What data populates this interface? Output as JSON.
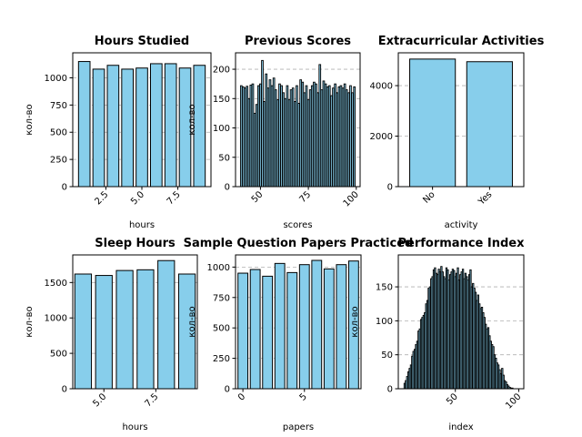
{
  "chart_data": [
    {
      "type": "bar",
      "title": "Hours Studied",
      "xlabel": "hours",
      "ylabel": "кол-во",
      "xlim": [
        0.2,
        9.8
      ],
      "ylim": [
        0,
        1230
      ],
      "yticks": [
        0,
        250,
        500,
        750,
        1000
      ],
      "xticks": [
        2.5,
        5.0,
        7.5
      ],
      "xtick_labels": [
        "2.5",
        "5.0",
        "7.5"
      ],
      "x": [
        1,
        2,
        3,
        4,
        5,
        6,
        7,
        8,
        9
      ],
      "values": [
        1150,
        1080,
        1115,
        1080,
        1090,
        1130,
        1130,
        1090,
        1115
      ],
      "bar_width": 0.8,
      "color": "#87ceeb",
      "grid": "y"
    },
    {
      "type": "bar",
      "title": "Previous Scores",
      "xlabel": "scores",
      "ylabel": "кол-во",
      "xlim": [
        37,
        102
      ],
      "ylim": [
        0,
        228
      ],
      "yticks": [
        0,
        50,
        100,
        150,
        200
      ],
      "xticks": [
        50,
        75,
        100
      ],
      "xtick_labels": [
        "50",
        "75",
        "100"
      ],
      "x": [
        40,
        41,
        42,
        43,
        44,
        45,
        46,
        47,
        48,
        49,
        50,
        51,
        52,
        53,
        54,
        55,
        56,
        57,
        58,
        59,
        60,
        61,
        62,
        63,
        64,
        65,
        66,
        67,
        68,
        69,
        70,
        71,
        72,
        73,
        74,
        75,
        76,
        77,
        78,
        79,
        80,
        81,
        82,
        83,
        84,
        85,
        86,
        87,
        88,
        89,
        90,
        91,
        92,
        93,
        94,
        95,
        96,
        97,
        98,
        99
      ],
      "values": [
        172,
        170,
        168,
        171,
        150,
        173,
        175,
        125,
        140,
        172,
        175,
        215,
        145,
        192,
        168,
        182,
        172,
        185,
        165,
        148,
        175,
        172,
        160,
        150,
        172,
        148,
        165,
        168,
        145,
        172,
        142,
        182,
        178,
        160,
        172,
        148,
        165,
        172,
        178,
        175,
        160,
        208,
        165,
        180,
        175,
        170,
        172,
        155,
        168,
        175,
        160,
        170,
        172,
        168,
        175,
        165,
        160,
        172,
        160,
        170
      ],
      "bar_width": 0.85,
      "color": "#87ceeb",
      "grid": "y"
    },
    {
      "type": "bar",
      "title": "Extracurricular Activities",
      "xlabel": "activity",
      "ylabel": "",
      "xlim": [
        -0.6,
        1.6
      ],
      "ylim": [
        0,
        5300
      ],
      "yticks": [
        0,
        2000,
        4000
      ],
      "xticks": [
        0,
        1
      ],
      "xtick_labels": [
        "No",
        "Yes"
      ],
      "x": [
        0,
        1
      ],
      "values": [
        5052,
        4948
      ],
      "bar_width": 0.8,
      "color": "#87ceeb",
      "grid": "y"
    },
    {
      "type": "bar",
      "title": "Sleep Hours",
      "xlabel": "hours",
      "ylabel": "кол-во",
      "xlim": [
        3.5,
        9.5
      ],
      "ylim": [
        0,
        1890
      ],
      "yticks": [
        0,
        500,
        1000,
        1500
      ],
      "xticks": [
        5.0,
        7.5
      ],
      "xtick_labels": [
        "5.0",
        "7.5"
      ],
      "x": [
        4,
        5,
        6,
        7,
        8,
        9
      ],
      "values": [
        1620,
        1600,
        1670,
        1680,
        1810,
        1620
      ],
      "bar_width": 0.8,
      "color": "#87ceeb",
      "grid": "y"
    },
    {
      "type": "bar",
      "title": "Sample Question Papers Practiced",
      "xlabel": "papers",
      "ylabel": "кол-во",
      "xlim": [
        -0.6,
        9.6
      ],
      "ylim": [
        0,
        1100
      ],
      "yticks": [
        0,
        250,
        500,
        750,
        1000
      ],
      "xticks": [
        0,
        5
      ],
      "xtick_labels": [
        "0",
        "5"
      ],
      "x": [
        0,
        1,
        2,
        3,
        4,
        5,
        6,
        7,
        8,
        9
      ],
      "values": [
        950,
        980,
        925,
        1030,
        955,
        1020,
        1055,
        985,
        1020,
        1050
      ],
      "bar_width": 0.8,
      "color": "#87ceeb",
      "grid": "y"
    },
    {
      "type": "bar",
      "title": "Performance Index",
      "xlabel": "index",
      "ylabel": "кол-во",
      "xlim": [
        5,
        104
      ],
      "ylim": [
        0,
        197
      ],
      "yticks": [
        0,
        50,
        100,
        150
      ],
      "xticks": [
        50,
        100
      ],
      "xtick_labels": [
        "50",
        "100"
      ],
      "x": [
        10,
        11,
        12,
        13,
        14,
        15,
        16,
        17,
        18,
        19,
        20,
        21,
        22,
        23,
        24,
        25,
        26,
        27,
        28,
        29,
        30,
        31,
        32,
        33,
        34,
        35,
        36,
        37,
        38,
        39,
        40,
        41,
        42,
        43,
        44,
        45,
        46,
        47,
        48,
        49,
        50,
        51,
        52,
        53,
        54,
        55,
        56,
        57,
        58,
        59,
        60,
        61,
        62,
        63,
        64,
        65,
        66,
        67,
        68,
        69,
        70,
        71,
        72,
        73,
        74,
        75,
        76,
        77,
        78,
        79,
        80,
        81,
        82,
        83,
        84,
        85,
        86,
        87,
        88,
        89,
        90,
        91,
        92,
        93,
        94,
        95,
        96,
        97,
        98,
        99,
        100
      ],
      "values": [
        8,
        12,
        18,
        25,
        30,
        35,
        48,
        55,
        58,
        65,
        70,
        85,
        88,
        102,
        105,
        108,
        112,
        125,
        130,
        148,
        150,
        162,
        165,
        175,
        178,
        170,
        168,
        176,
        172,
        180,
        172,
        165,
        162,
        178,
        175,
        160,
        168,
        172,
        176,
        174,
        165,
        170,
        178,
        160,
        168,
        172,
        176,
        162,
        170,
        165,
        160,
        168,
        175,
        150,
        155,
        148,
        142,
        130,
        138,
        125,
        118,
        120,
        112,
        105,
        95,
        88,
        90,
        78,
        70,
        65,
        62,
        50,
        45,
        38,
        35,
        28,
        22,
        30,
        20,
        12,
        10,
        6,
        4,
        2,
        1,
        1,
        0,
        0,
        0,
        0,
        0
      ],
      "bar_width": 1.0,
      "color": "#87ceeb",
      "grid": "y"
    }
  ]
}
